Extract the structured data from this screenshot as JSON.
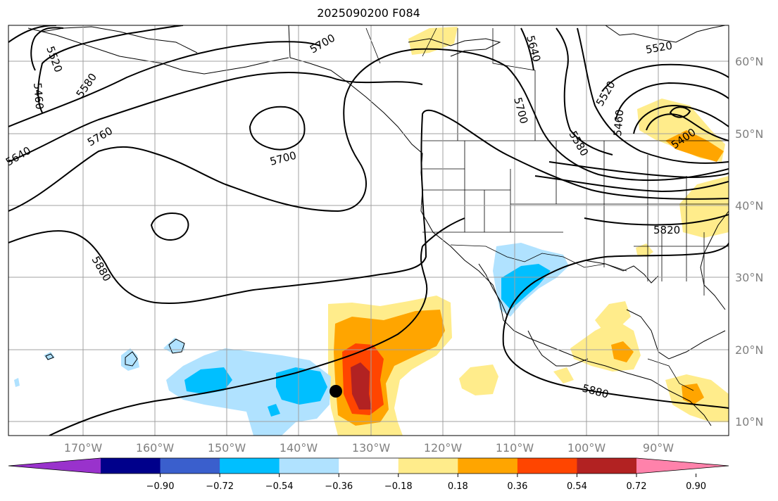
{
  "title": "2025090200 F084",
  "map": {
    "lat_labels": [
      "60°N",
      "50°N",
      "40°N",
      "30°N",
      "20°N",
      "10°N"
    ],
    "lon_labels": [
      "170°W",
      "160°W",
      "150°W",
      "140°W",
      "130°W",
      "120°W",
      "110°W",
      "100°W",
      "90°W"
    ],
    "contour_labels": [
      "5520",
      "5460",
      "5580",
      "5640",
      "5760",
      "5880",
      "5700",
      "5700",
      "5640",
      "5700",
      "5580",
      "5520",
      "5460",
      "5520",
      "5400",
      "5820",
      "5880"
    ]
  },
  "colorbar": {
    "ticks": [
      "−0.90",
      "−0.72",
      "−0.54",
      "−0.36",
      "−0.18",
      "0.18",
      "0.36",
      "0.54",
      "0.72",
      "0.90"
    ],
    "colors": [
      "#9932cc",
      "#00008b",
      "#3a5fcd",
      "#00bfff",
      "#b0e2ff",
      "#ffffff",
      "#ffec8b",
      "#ffa500",
      "#ff4500",
      "#b22222",
      "#ff82ab"
    ]
  }
}
